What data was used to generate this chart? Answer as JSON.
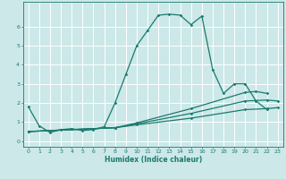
{
  "title": "",
  "xlabel": "Humidex (Indice chaleur)",
  "ylabel": "",
  "background_color": "#cce8e8",
  "grid_color": "#ffffff",
  "line_color": "#1a7a6e",
  "xlim": [
    -0.5,
    23.5
  ],
  "ylim": [
    -0.3,
    7.3
  ],
  "xticks": [
    0,
    1,
    2,
    3,
    4,
    5,
    6,
    7,
    8,
    9,
    10,
    11,
    12,
    13,
    14,
    15,
    16,
    17,
    18,
    19,
    20,
    21,
    22,
    23
  ],
  "yticks": [
    0,
    1,
    2,
    3,
    4,
    5,
    6
  ],
  "series": [
    {
      "x": [
        0,
        1,
        2,
        3,
        4,
        5,
        6,
        7,
        8,
        9,
        10,
        11,
        12,
        13,
        14,
        15,
        16,
        17,
        18,
        19,
        20,
        21,
        22
      ],
      "y": [
        1.8,
        0.8,
        0.45,
        0.6,
        0.65,
        0.55,
        0.6,
        0.75,
        2.0,
        3.5,
        5.0,
        5.8,
        6.6,
        6.65,
        6.6,
        6.1,
        6.55,
        3.75,
        2.5,
        3.0,
        3.0,
        2.1,
        1.65
      ]
    },
    {
      "x": [
        0,
        8,
        10,
        15,
        20,
        22,
        23
      ],
      "y": [
        0.5,
        0.7,
        0.85,
        1.2,
        1.65,
        1.7,
        1.75
      ]
    },
    {
      "x": [
        0,
        8,
        10,
        15,
        20,
        22,
        23
      ],
      "y": [
        0.5,
        0.7,
        0.9,
        1.45,
        2.1,
        2.15,
        2.1
      ]
    },
    {
      "x": [
        0,
        8,
        10,
        15,
        20,
        21,
        22
      ],
      "y": [
        0.5,
        0.7,
        0.95,
        1.7,
        2.55,
        2.6,
        2.5
      ]
    }
  ]
}
